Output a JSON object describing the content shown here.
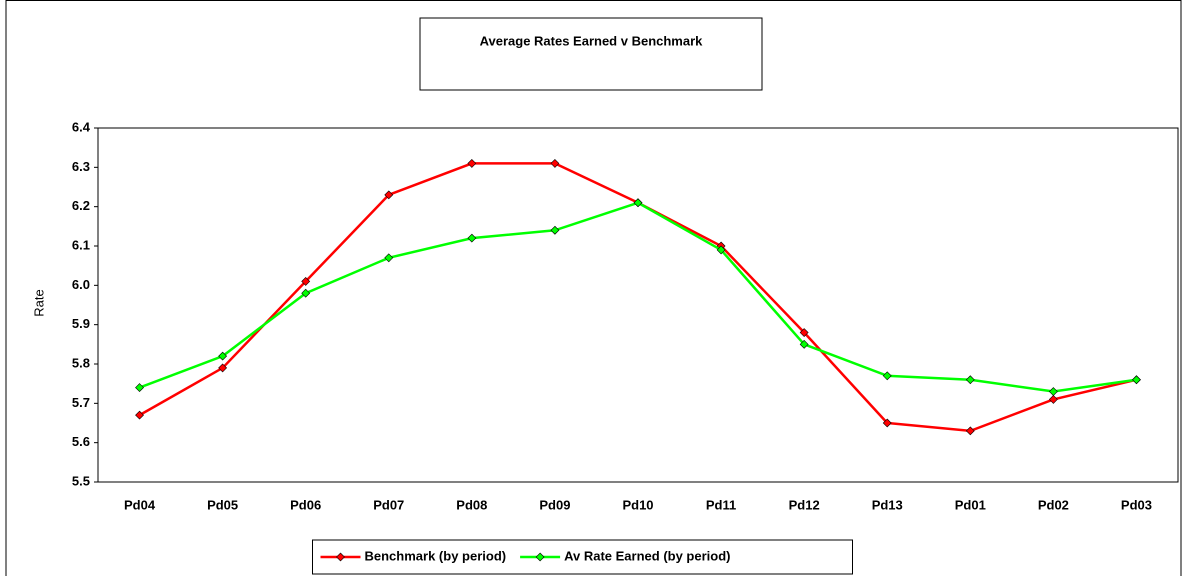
{
  "chart_data": {
    "type": "line",
    "title": "Average Rates Earned v Benchmark",
    "y_label": "Rate",
    "categories": [
      "Pd04",
      "Pd05",
      "Pd06",
      "Pd07",
      "Pd08",
      "Pd09",
      "Pd10",
      "Pd11",
      "Pd12",
      "Pd13",
      "Pd01",
      "Pd02",
      "Pd03"
    ],
    "series": [
      {
        "name": "Benchmark (by period)",
        "color": "#ff0000",
        "marker_color": "#cc0000",
        "values": [
          5.67,
          5.79,
          6.01,
          6.23,
          6.31,
          6.31,
          6.21,
          6.1,
          5.88,
          5.65,
          5.63,
          5.71,
          5.76
        ]
      },
      {
        "name": "Av Rate Earned (by period)",
        "color": "#00ff00",
        "marker_color": "#00cc00",
        "values": [
          5.74,
          5.82,
          5.98,
          6.07,
          6.12,
          6.14,
          6.21,
          6.09,
          5.85,
          5.77,
          5.76,
          5.73,
          5.76
        ]
      }
    ],
    "ylim": [
      5.5,
      6.4
    ],
    "yticks": [
      {
        "value": 5.5,
        "label": "5.5"
      },
      {
        "value": 5.6,
        "label": "5.6"
      },
      {
        "value": 5.7,
        "label": "5.7"
      },
      {
        "value": 5.8,
        "label": "5.8"
      },
      {
        "value": 5.9,
        "label": "5.9"
      },
      {
        "value": 6.0,
        "label": "6.0"
      },
      {
        "value": 6.1,
        "label": "6.1"
      },
      {
        "value": 6.2,
        "label": "6.2"
      },
      {
        "value": 6.3,
        "label": "6.3"
      },
      {
        "value": 6.4,
        "label": "6.4"
      }
    ],
    "legend": "bottom"
  }
}
